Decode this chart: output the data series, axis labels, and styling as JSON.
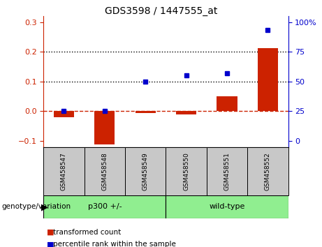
{
  "title": "GDS3598 / 1447555_at",
  "samples": [
    "GSM458547",
    "GSM458548",
    "GSM458549",
    "GSM458550",
    "GSM458551",
    "GSM458552"
  ],
  "red_values": [
    -0.02,
    -0.112,
    -0.005,
    -0.01,
    0.05,
    0.213
  ],
  "blue_percentiles": [
    25,
    25,
    50,
    55,
    57,
    93
  ],
  "ylim_left": [
    -0.12,
    0.32
  ],
  "left_yticks": [
    -0.1,
    0.0,
    0.1,
    0.2,
    0.3
  ],
  "right_yticks": [
    0,
    25,
    50,
    75,
    100
  ],
  "bar_color": "#CC2200",
  "dot_color": "#0000CC",
  "dashed_line_color": "#CC2200",
  "dotted_line_color": "#000000",
  "bg_color": "#FFFFFF",
  "label_bg": "#C8C8C8",
  "group_color": "#90EE90",
  "legend_red": "transformed count",
  "legend_blue": "percentile rank within the sample",
  "bar_width": 0.5
}
